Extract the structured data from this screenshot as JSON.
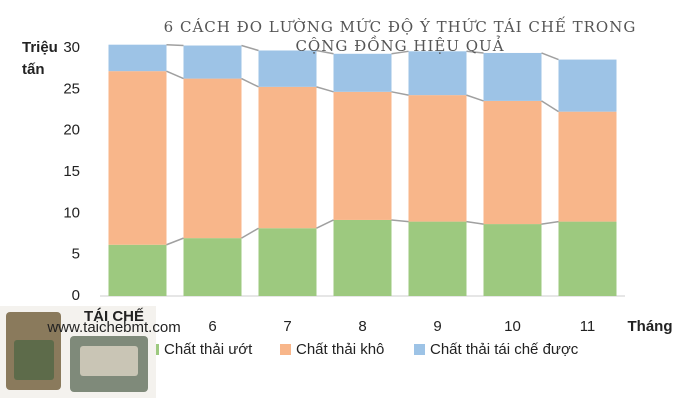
{
  "chart_data": {
    "type": "stacked_bar",
    "title": "6 CÁCH ĐO LƯỜNG MỨC ĐỘ Ý THỨC TÁI CHẾ TRONG CỘNG ĐỒNG HIỆU QUẢ",
    "y_label": "Triệu tấn",
    "x_label": "Tháng",
    "categories": [
      null,
      "6",
      "7",
      "8",
      "9",
      "10",
      "11"
    ],
    "series": [
      {
        "name": "Chất thải ướt",
        "color": "#9dc97f",
        "values": [
          6.2,
          7.0,
          8.2,
          9.2,
          9.0,
          8.7,
          9.0
        ]
      },
      {
        "name": "Chất thải khô",
        "color": "#f8b68a",
        "values": [
          21.0,
          19.3,
          17.1,
          15.5,
          15.3,
          14.9,
          13.3
        ]
      },
      {
        "name": "Chất thải tái chế được",
        "color": "#9dc3e6",
        "values": [
          3.2,
          4.0,
          4.4,
          4.6,
          5.3,
          5.8,
          6.3
        ]
      }
    ],
    "ylim": [
      0,
      30
    ],
    "yticks": [
      0,
      5,
      10,
      15,
      20,
      25,
      30
    ],
    "grid": false
  },
  "overlay": {
    "logo": "TÁI CHẾ",
    "url": "www.taichebmt.com"
  }
}
